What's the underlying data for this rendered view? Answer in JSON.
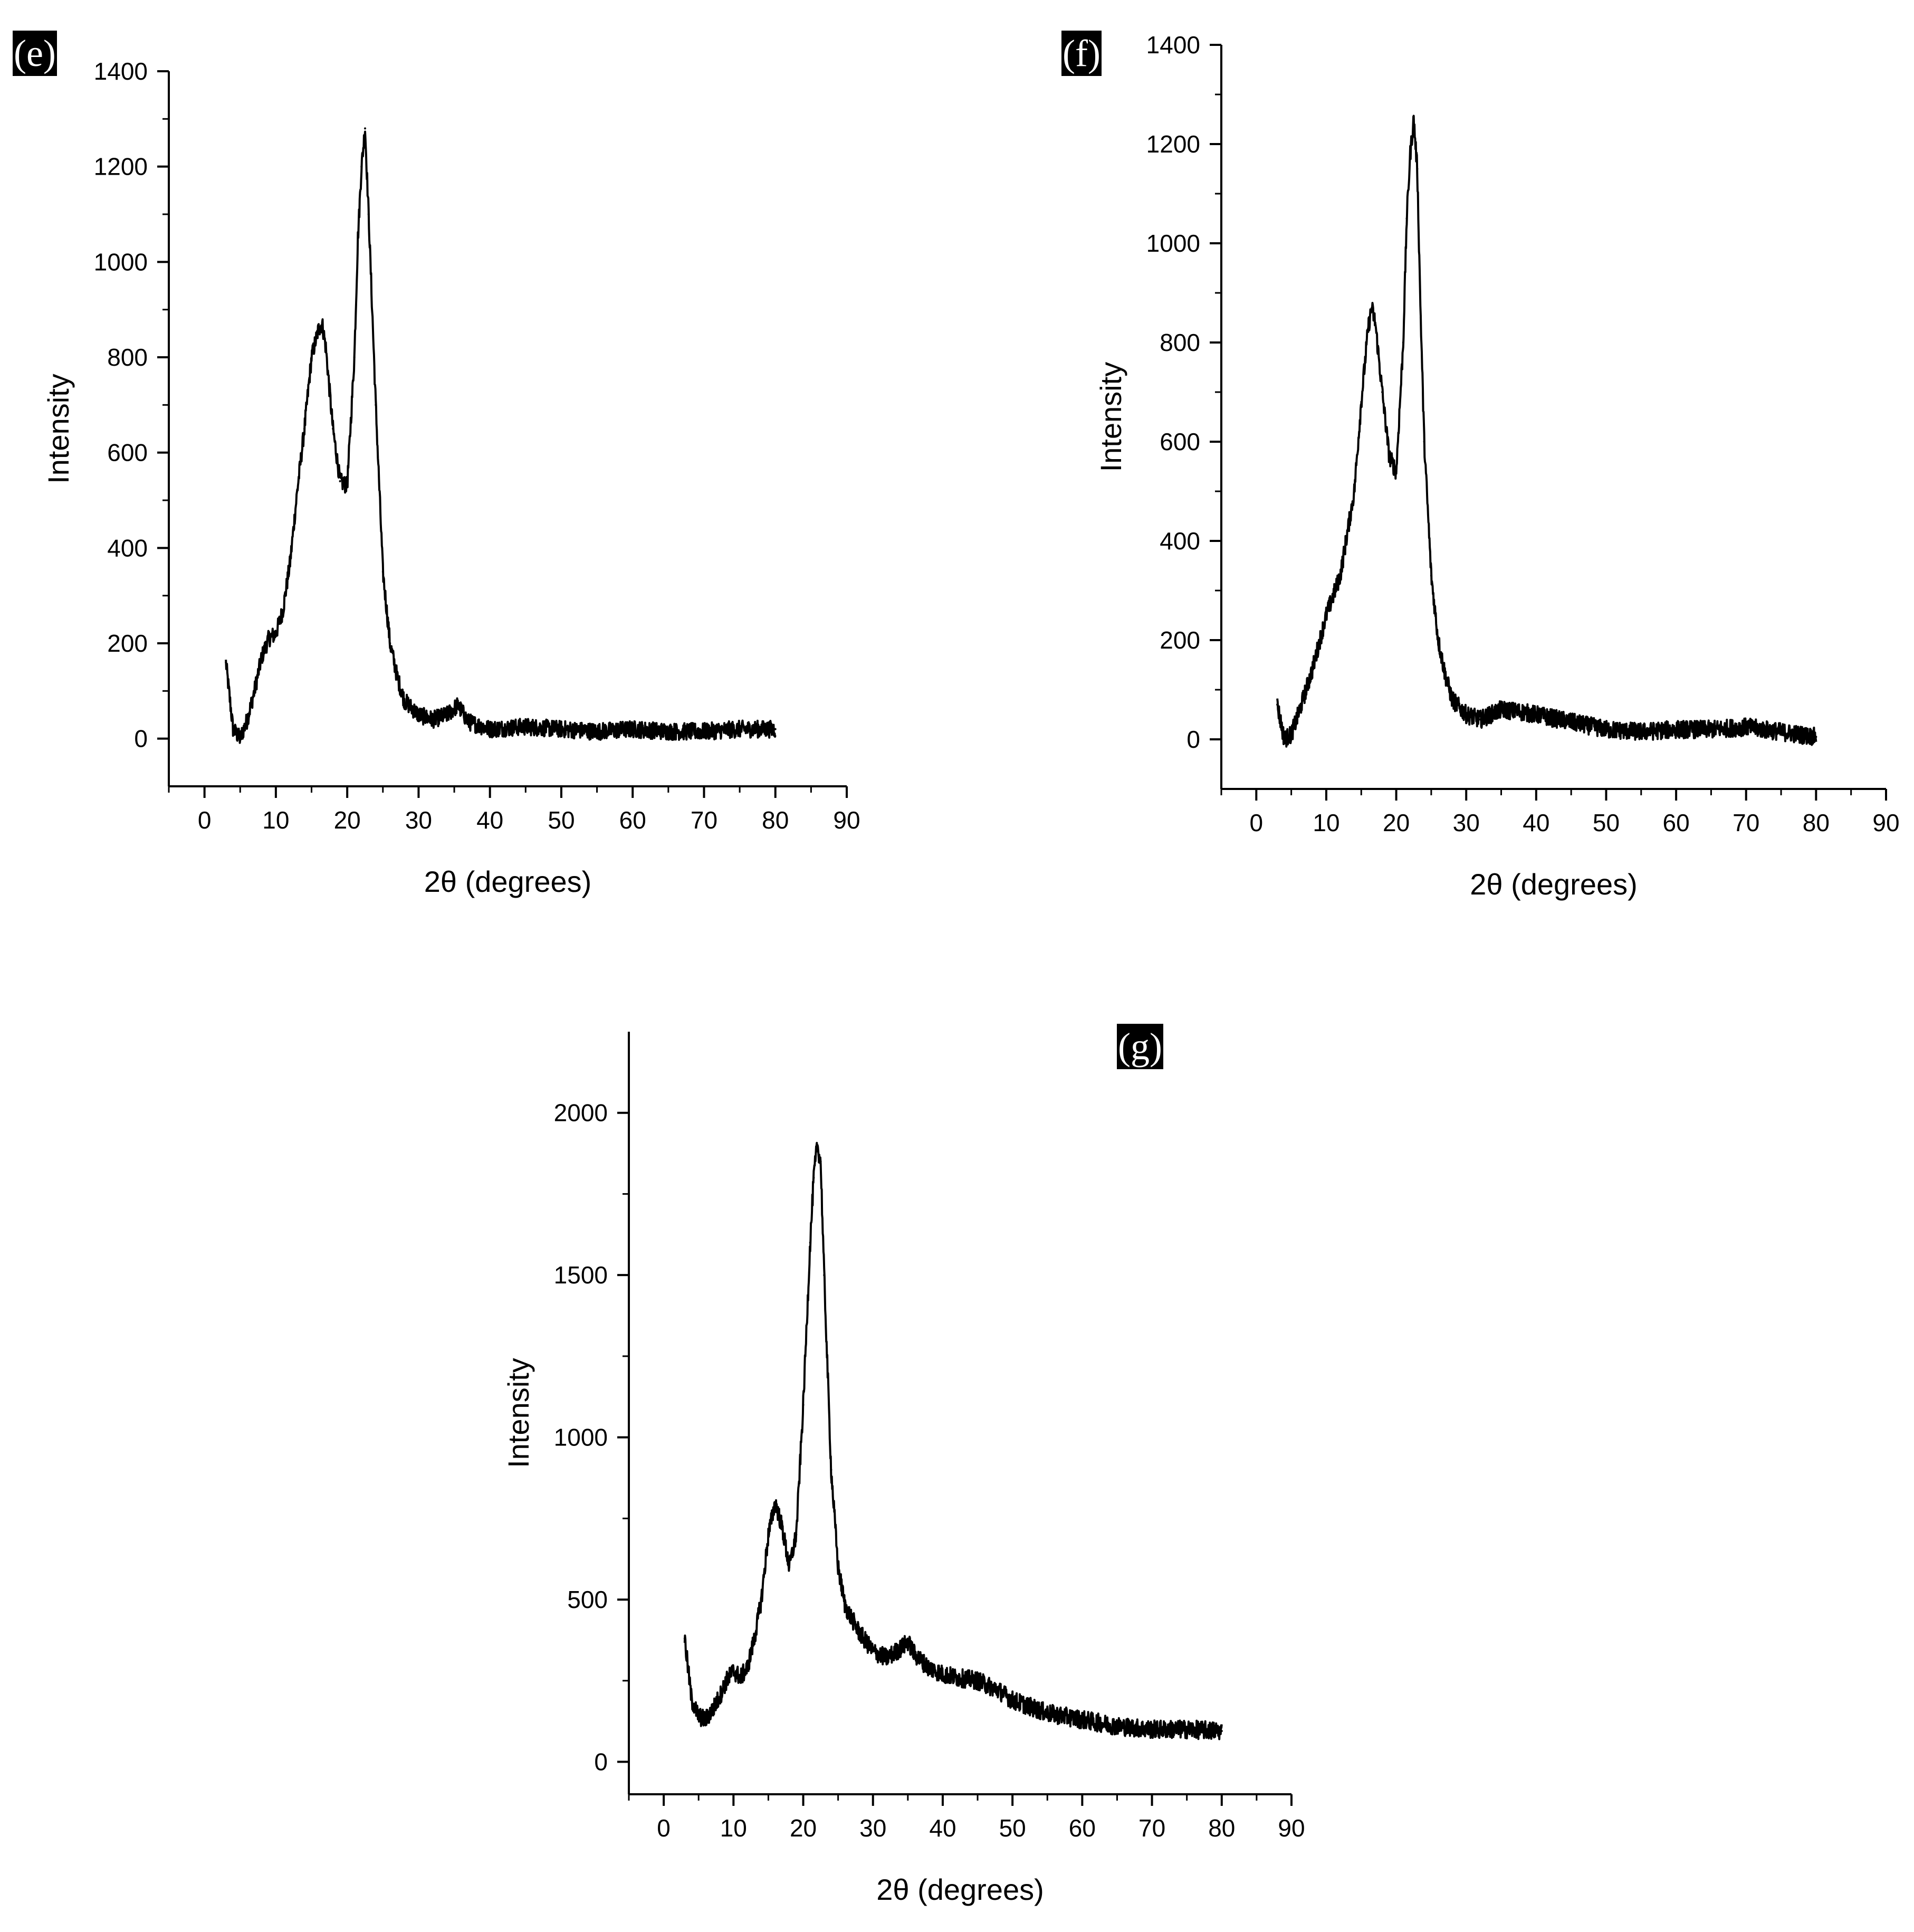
{
  "chart_data": [
    {
      "type": "line",
      "panel_label": "(e)",
      "xlabel": "2θ (degrees)",
      "ylabel": "Intensity",
      "xlim": [
        -5,
        90
      ],
      "ylim": [
        -100,
        1400
      ],
      "xticks": [
        0,
        10,
        20,
        30,
        40,
        50,
        60,
        70,
        80,
        90
      ],
      "yticks": [
        0,
        200,
        400,
        600,
        800,
        1000,
        1200,
        1400
      ],
      "grid": false,
      "series": [
        {
          "name": "(e)",
          "x": [
            3,
            4,
            5,
            6,
            7,
            8,
            9,
            10,
            11,
            12,
            13,
            14,
            15,
            16,
            16.5,
            17,
            18,
            19,
            20,
            21,
            21.5,
            22,
            22.5,
            23,
            24,
            25,
            26,
            27,
            28,
            30,
            32,
            34,
            35.5,
            37,
            40,
            45,
            50,
            55,
            60,
            65,
            70,
            75,
            80
          ],
          "y": [
            160,
            20,
            0,
            40,
            100,
            170,
            210,
            220,
            270,
            370,
            520,
            650,
            800,
            860,
            870,
            820,
            650,
            540,
            530,
            800,
            1050,
            1200,
            1280,
            1100,
            700,
            350,
            200,
            130,
            80,
            50,
            40,
            50,
            70,
            35,
            20,
            25,
            20,
            15,
            20,
            15,
            15,
            20,
            20
          ]
        }
      ]
    },
    {
      "type": "line",
      "panel_label": "(f)",
      "xlabel": "2θ (degrees)",
      "ylabel": "Intensity",
      "xlim": [
        -5,
        90
      ],
      "ylim": [
        -100,
        1400
      ],
      "xticks": [
        0,
        10,
        20,
        30,
        40,
        50,
        60,
        70,
        80,
        90
      ],
      "yticks": [
        0,
        200,
        400,
        600,
        800,
        1000,
        1200,
        1400
      ],
      "grid": false,
      "series": [
        {
          "name": "(f)",
          "x": [
            3,
            4,
            5,
            6,
            8,
            10,
            12,
            14,
            15,
            16,
            16.5,
            17,
            18,
            19,
            20,
            21,
            21.5,
            22,
            22.5,
            23,
            23.5,
            24,
            25,
            26,
            27,
            28,
            30,
            32,
            35,
            38,
            40,
            45,
            50,
            55,
            60,
            65,
            70,
            75,
            80
          ],
          "y": [
            70,
            0,
            10,
            50,
            140,
            250,
            330,
            500,
            680,
            830,
            870,
            840,
            700,
            570,
            540,
            800,
            1050,
            1180,
            1250,
            1150,
            850,
            600,
            330,
            200,
            130,
            80,
            50,
            40,
            60,
            55,
            50,
            35,
            20,
            15,
            20,
            20,
            25,
            15,
            5
          ]
        }
      ]
    },
    {
      "type": "line",
      "panel_label": "(g)",
      "xlabel": "2θ (degrees)",
      "ylabel": "Intensity",
      "xlim": [
        -5,
        90
      ],
      "ylim": [
        -100,
        2250
      ],
      "xticks": [
        0,
        10,
        20,
        30,
        40,
        50,
        60,
        70,
        80,
        90
      ],
      "yticks": [
        0,
        500,
        1000,
        1500,
        2000
      ],
      "grid": false,
      "series": [
        {
          "name": "(g)",
          "x": [
            3,
            4,
            5,
            6,
            7,
            8,
            9,
            10,
            11,
            12,
            13,
            14,
            15,
            16,
            17,
            18,
            19,
            20,
            21,
            21.5,
            22,
            22.5,
            23,
            24,
            25,
            26,
            28,
            30,
            32,
            34,
            35,
            36,
            38,
            40,
            42,
            45,
            48,
            50,
            55,
            60,
            65,
            70,
            75,
            80
          ],
          "y": [
            380,
            190,
            140,
            130,
            160,
            200,
            250,
            280,
            260,
            290,
            380,
            500,
            700,
            800,
            720,
            600,
            700,
            1100,
            1600,
            1800,
            1900,
            1850,
            1500,
            900,
            600,
            480,
            400,
            340,
            320,
            350,
            370,
            330,
            290,
            270,
            260,
            250,
            220,
            190,
            150,
            130,
            110,
            100,
            100,
            95
          ]
        }
      ]
    }
  ]
}
